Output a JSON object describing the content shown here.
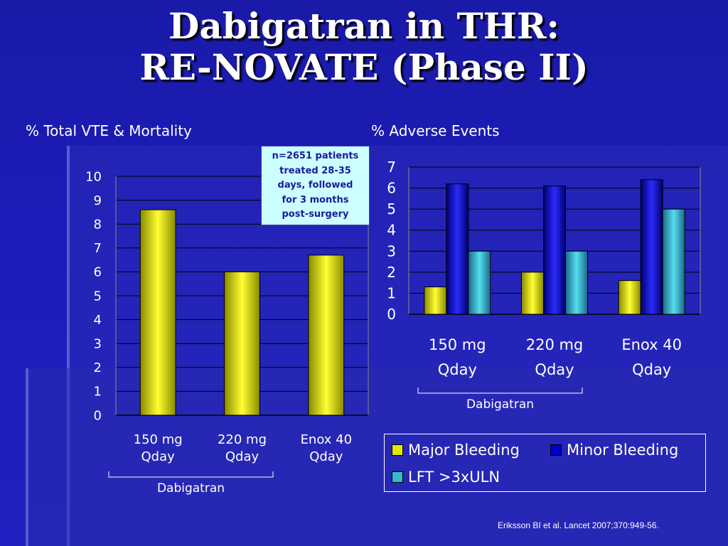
{
  "title_line1": "Dabigatran in THR:",
  "title_line2": "RE-NOVATE (Phase II)",
  "left_heading": "% Total VTE & Mortality",
  "right_heading": "% Adverse Events",
  "info_box": [
    "n=2651 patients",
    "treated 28-35",
    "days, followed",
    "for 3 months",
    "post-surgery"
  ],
  "bracket_label": "Dabigatran",
  "legend": {
    "items": [
      {
        "label": "Major Bleeding",
        "color": "#e6e600"
      },
      {
        "label": "Minor Bleeding",
        "color": "#0000cc"
      },
      {
        "label": "LFT >3xULN",
        "color": "#33bbcc"
      }
    ]
  },
  "citation": "Eriksson BI et al. Lancet 2007;370:949-56.",
  "chart_data": [
    {
      "type": "bar",
      "title": "% Total VTE & Mortality",
      "categories": [
        [
          "150 mg",
          "Qday"
        ],
        [
          "220 mg",
          "Qday"
        ],
        [
          "Enox 40",
          "Qday"
        ]
      ],
      "values": [
        8.6,
        6.0,
        6.7
      ],
      "ylim": [
        0,
        10
      ],
      "yticks": [
        0,
        1,
        2,
        3,
        4,
        5,
        6,
        7,
        8,
        9,
        10
      ],
      "grid": true,
      "colors": {
        "bar": "#e6e600"
      }
    },
    {
      "type": "bar",
      "title": "% Adverse Events",
      "categories": [
        [
          "150 mg",
          "Qday"
        ],
        [
          "220 mg",
          "Qday"
        ],
        [
          "Enox 40",
          "Qday"
        ]
      ],
      "series": [
        {
          "name": "Major Bleeding",
          "values": [
            1.3,
            2.0,
            1.6
          ],
          "color": "#e6e600"
        },
        {
          "name": "Minor Bleeding",
          "values": [
            6.2,
            6.1,
            6.4
          ],
          "color": "#0000cc"
        },
        {
          "name": "LFT >3xULN",
          "values": [
            3.0,
            3.0,
            5.0
          ],
          "color": "#33bbcc"
        }
      ],
      "ylim": [
        0,
        7
      ],
      "yticks": [
        0,
        1,
        2,
        3,
        4,
        5,
        6,
        7
      ],
      "grid": true,
      "legend": "bottom"
    }
  ]
}
